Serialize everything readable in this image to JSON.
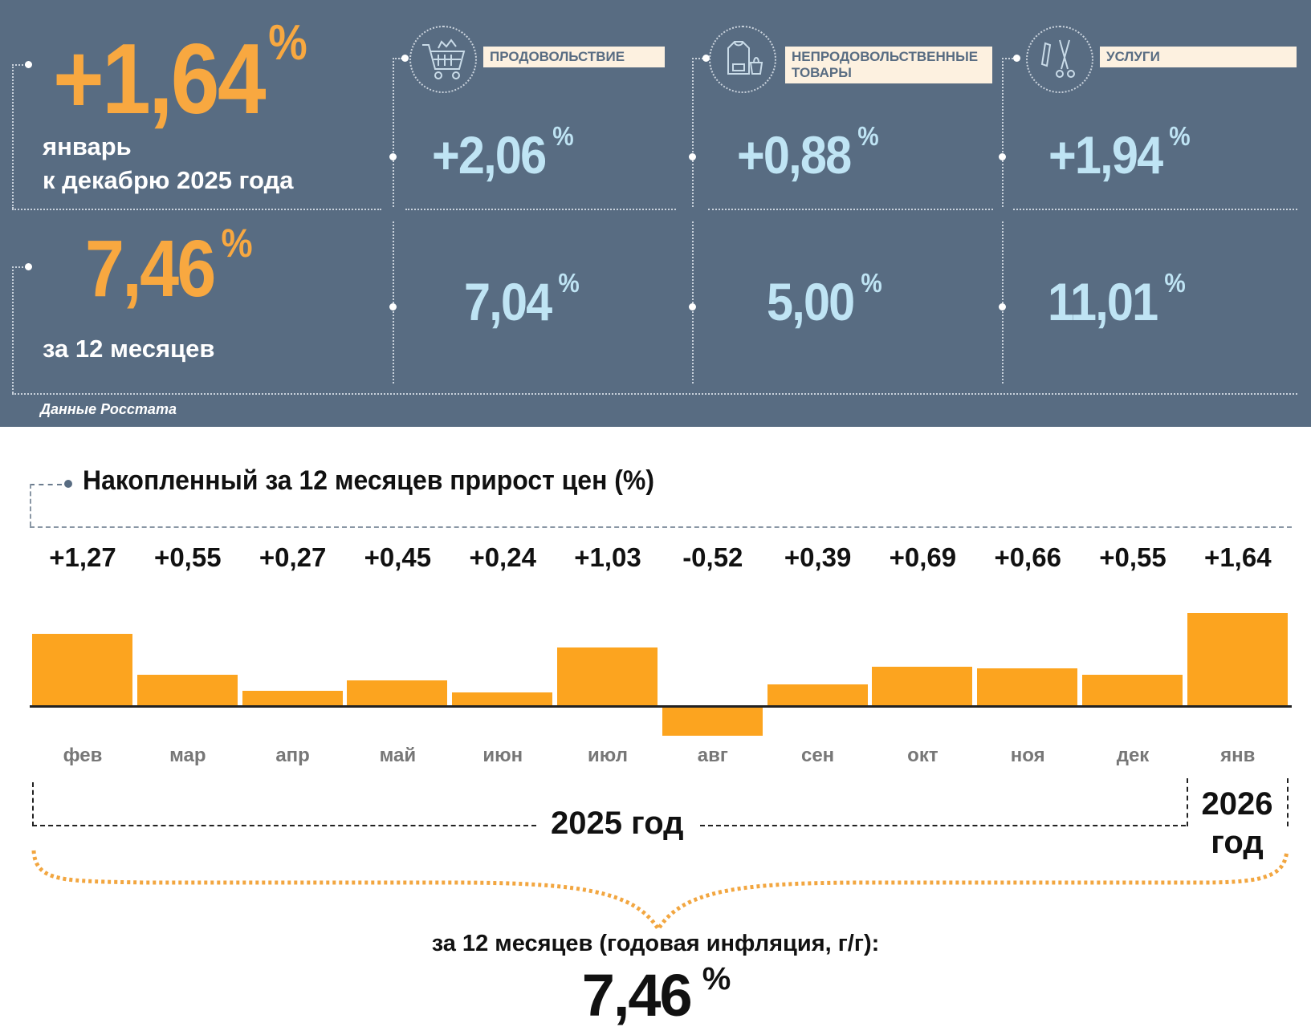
{
  "panel": {
    "monthly": {
      "value": "+1,64",
      "pct": "%",
      "line1": "январь",
      "line2": "к декабрю 2025 года"
    },
    "annual": {
      "value": "7,46",
      "pct": "%",
      "line1": "за 12 месяцев"
    },
    "categories": [
      {
        "label": "ПРОДОВОЛЬСТВИЕ",
        "icon": "shopping-cart-icon",
        "monthly": "+2,06",
        "annual": "7,04"
      },
      {
        "label": "НЕПРОДОВОЛЬСТВЕННЫЕ ТОВАРЫ",
        "icon": "clothing-bag-icon",
        "monthly": "+0,88",
        "annual": "5,00"
      },
      {
        "label": "УСЛУГИ",
        "icon": "comb-scissors-icon",
        "monthly": "+1,94",
        "annual": "11,01"
      }
    ],
    "pct": "%",
    "source": "Данные Росстата"
  },
  "chart_data": {
    "type": "bar",
    "title": "Накопленный за 12 месяцев прирост цен (%)",
    "categories": [
      "фев",
      "мар",
      "апр",
      "май",
      "июн",
      "июл",
      "авг",
      "сен",
      "окт",
      "ноя",
      "дек",
      "янв"
    ],
    "values": [
      1.27,
      0.55,
      0.27,
      0.45,
      0.24,
      1.03,
      -0.52,
      0.39,
      0.69,
      0.66,
      0.55,
      1.64
    ],
    "value_labels": [
      "+1,27",
      "+0,55",
      "+0,27",
      "+0,45",
      "+0,24",
      "+1,03",
      "-0,52",
      "+0,39",
      "+0,69",
      "+0,66",
      "+0,55",
      "+1,64"
    ],
    "colors": {
      "bar": "#fca41f"
    },
    "year_labels": {
      "y2025": "2025 год",
      "y2026a": "2026",
      "y2026b": "год"
    },
    "summary_label": "за 12 месяцев (годовая инфляция, г/г):",
    "summary_value": "7,46",
    "summary_pct": "%"
  }
}
